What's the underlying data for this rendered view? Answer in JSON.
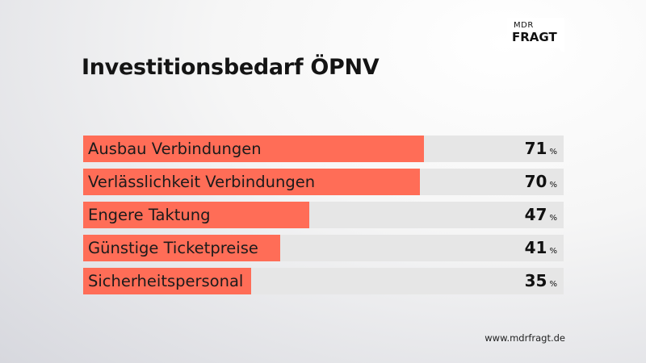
{
  "logo": {
    "top": "MDR",
    "bottom": "FRAGT"
  },
  "title": "Investitionsbedarf ÖPNV",
  "colors": {
    "bar": "#ff6d57",
    "track": "#e6e6e6",
    "text": "#141414"
  },
  "chart_data": {
    "type": "bar",
    "orientation": "horizontal",
    "title": "Investitionsbedarf ÖPNV",
    "unit": "%",
    "xlim": [
      0,
      100
    ],
    "categories": [
      "Ausbau Verbindungen",
      "Verlässlichkeit Verbindungen",
      "Engere Taktung",
      "Günstige Ticketpreise",
      "Sicherheitspersonal"
    ],
    "values": [
      71,
      70,
      47,
      41,
      35
    ]
  },
  "footer": "www.mdrfragt.de"
}
